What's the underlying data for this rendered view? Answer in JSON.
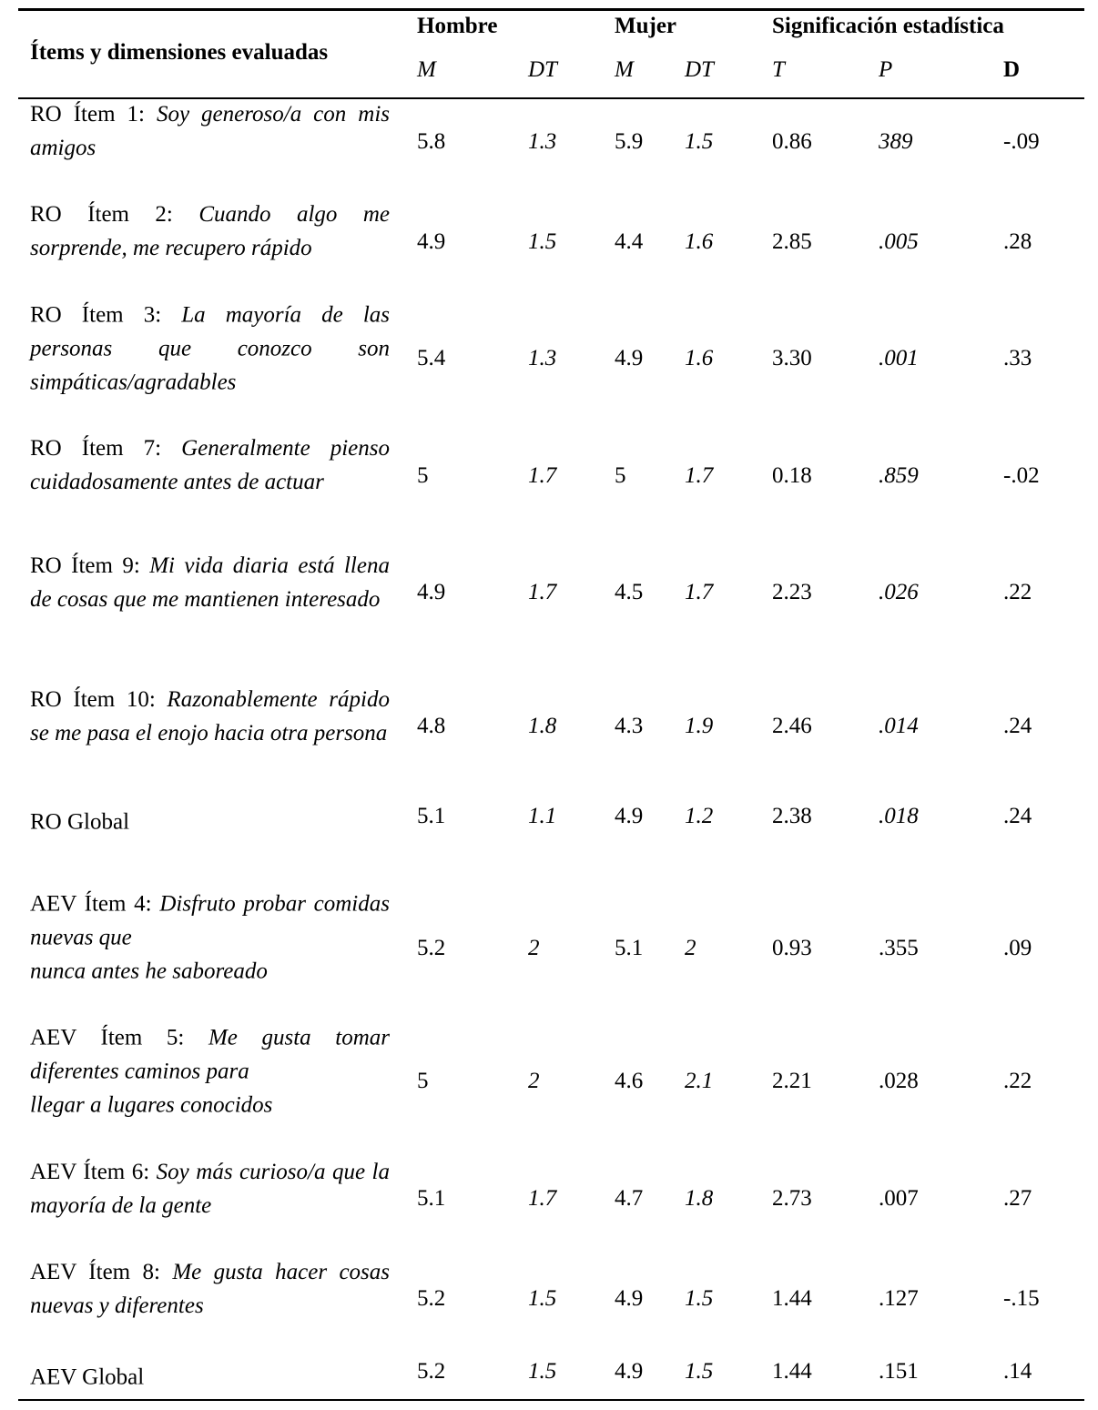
{
  "header": {
    "items_label": "Ítems y dimensiones evaluadas",
    "group_hombre": "Hombre",
    "group_mujer": "Mujer",
    "group_sig": "Significación estadística",
    "col_m1": "M",
    "col_dt1": "DT",
    "col_m2": "M",
    "col_dt2": "DT",
    "col_t": "T",
    "col_p": "P",
    "col_d": "D"
  },
  "rows": [
    {
      "prefix": "RO Ítem 1: ",
      "text": "Soy generoso/a con mis amigos",
      "hm": "5.8",
      "hdt": "1.3",
      "mm": "5.9",
      "mdt": "1.5",
      "t": "0.86",
      "p": "389",
      "p_italic": true,
      "d": "-.09"
    },
    {
      "prefix": "RO Ítem 2: ",
      "text": "Cuando algo me sorprende, me recupero rápido",
      "hm": "4.9",
      "hdt": "1.5",
      "mm": "4.4",
      "mdt": "1.6",
      "t": "2.85",
      "p": ".005",
      "p_italic": true,
      "d": ".28"
    },
    {
      "prefix": "RO Ítem 3: ",
      "text": "La mayoría de las personas que conozco son simpáticas/agradables",
      "hm": "5.4",
      "hdt": "1.3",
      "mm": "4.9",
      "mdt": "1.6",
      "t": "3.30",
      "p": ".001",
      "p_italic": true,
      "d": ".33"
    },
    {
      "prefix": "RO Ítem 7: ",
      "text": "Generalmente pienso cuidadosamente antes de actuar",
      "hm": "5",
      "hdt": "1.7",
      "mm": "5",
      "mdt": "1.7",
      "t": "0.18",
      "p": ".859",
      "p_italic": true,
      "d": "-.02"
    },
    {
      "prefix": "RO Ítem 9: ",
      "text": "Mi vida diaria está llena de cosas que me mantienen interesado",
      "hm": "4.9",
      "hdt": "1.7",
      "mm": "4.5",
      "mdt": "1.7",
      "t": "2.23",
      "p": ".026",
      "p_italic": true,
      "d": ".22"
    },
    {
      "prefix": "RO Ítem 10: ",
      "text": "Razonablemente rápido se me pasa el enojo hacia otra persona",
      "hm": "4.8",
      "hdt": "1.8",
      "mm": "4.3",
      "mdt": "1.9",
      "t": "2.46",
      "p": ".014",
      "p_italic": true,
      "d": ".24"
    },
    {
      "prefix": "RO Global",
      "text": "",
      "hm": "5.1",
      "hdt": "1.1",
      "mm": "4.9",
      "mdt": "1.2",
      "t": "2.38",
      "p": ".018",
      "p_italic": true,
      "d": ".24"
    },
    {
      "prefix": "AEV Ítem 4: ",
      "text": "Disfruto probar comidas nuevas que\nnunca antes he saboreado",
      "hm": "5.2",
      "hdt": "2",
      "mm": "5.1",
      "mdt": "2",
      "t": "0.93",
      "p": ".355",
      "p_italic": false,
      "d": ".09"
    },
    {
      "prefix": "AEV Ítem 5: ",
      "text": "Me gusta tomar diferentes caminos para\nllegar a lugares conocidos",
      "hm": "5",
      "hdt": "2",
      "mm": "4.6",
      "mdt": "2.1",
      "t": "2.21",
      "p": ".028",
      "p_italic": false,
      "d": ".22"
    },
    {
      "prefix": "AEV Ítem 6: ",
      "text": "Soy más curioso/a que la mayoría de la gente",
      "hm": "5.1",
      "hdt": "1.7",
      "mm": "4.7",
      "mdt": "1.8",
      "t": "2.73",
      "p": ".007",
      "p_italic": false,
      "d": ".27"
    },
    {
      "prefix": "AEV Ítem 8: ",
      "text": "Me gusta hacer cosas nuevas y diferentes",
      "hm": "5.2",
      "hdt": "1.5",
      "mm": "4.9",
      "mdt": "1.5",
      "t": "1.44",
      "p": ".127",
      "p_italic": false,
      "d": "-.15"
    },
    {
      "prefix": "AEV Global",
      "text": "",
      "hm": "5.2",
      "hdt": "1.5",
      "mm": "4.9",
      "mdt": "1.5",
      "t": "1.44",
      "p": ".151",
      "p_italic": false,
      "d": ".14"
    }
  ]
}
